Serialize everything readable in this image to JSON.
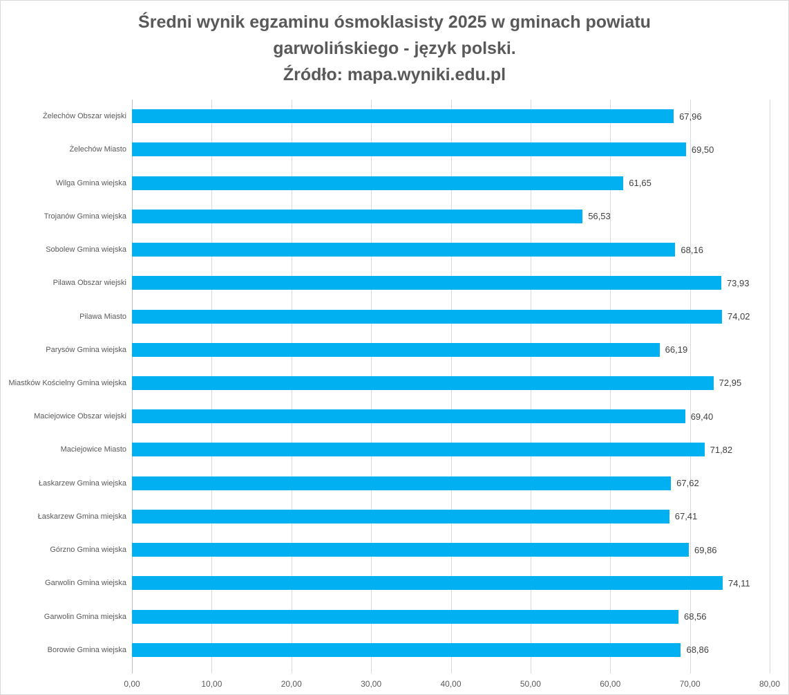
{
  "chart_data": {
    "type": "bar",
    "orientation": "horizontal",
    "title_lines": [
      "Średni wynik egzaminu ósmoklasisty 2025 w gminach powiatu",
      "garwolińskiego - język polski.",
      "Źródło: mapa.wyniki.edu.pl"
    ],
    "categories": [
      "Żelechów Obszar wiejski",
      "Żelechów Miasto",
      "Wilga Gmina wiejska",
      "Trojanów Gmina wiejska",
      "Sobolew Gmina wiejska",
      "Pilawa Obszar wiejski",
      "Pilawa Miasto",
      "Parysów Gmina wiejska",
      "Miastków Kościelny Gmina wiejska",
      "Maciejowice Obszar wiejski",
      "Maciejowice Miasto",
      "Łaskarzew Gmina wiejska",
      "Łaskarzew Gmina miejska",
      "Górzno Gmina wiejska",
      "Garwolin Gmina wiejska",
      "Garwolin Gmina miejska",
      "Borowie Gmina wiejska"
    ],
    "values": [
      67.96,
      69.5,
      61.65,
      56.53,
      68.16,
      73.93,
      74.02,
      66.19,
      72.95,
      69.4,
      71.82,
      67.62,
      67.41,
      69.86,
      74.11,
      68.56,
      68.86
    ],
    "value_labels": [
      "67,96",
      "69,50",
      "61,65",
      "56,53",
      "68,16",
      "73,93",
      "74,02",
      "66,19",
      "72,95",
      "69,40",
      "71,82",
      "67,62",
      "67,41",
      "69,86",
      "74,11",
      "68,56",
      "68,86"
    ],
    "xlabel": "",
    "ylabel": "",
    "xlim": [
      0,
      80
    ],
    "x_tick_labels": [
      "0,00",
      "10,00",
      "20,00",
      "30,00",
      "40,00",
      "50,00",
      "60,00",
      "70,00",
      "80,00"
    ],
    "grid": true,
    "legend": "none"
  },
  "colors": {
    "bar": "#00B0F0",
    "gridline": "#D9D9D9",
    "axis_line": "#BFBFBF",
    "category_text": "#595959",
    "value_text": "#404040",
    "title_text": "#595959",
    "background": "#FFFFFF",
    "border": "#D9D9D9"
  }
}
